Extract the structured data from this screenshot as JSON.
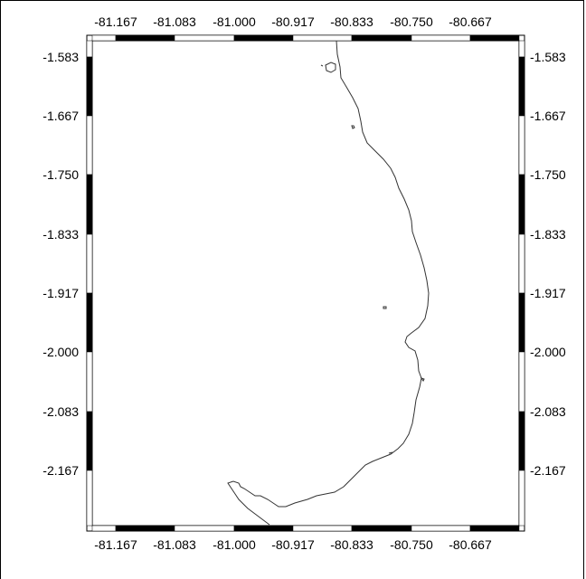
{
  "map": {
    "top_lon_labels": [
      "-81.167",
      "-81.083",
      "-81.000",
      "-80.917",
      "-80.833",
      "-80.750",
      "-80.667"
    ],
    "bottom_lon_labels": [
      "-81.167",
      "-81.083",
      "-81.000",
      "-80.917",
      "-80.833",
      "-80.750",
      "-80.667"
    ],
    "left_lat_labels": [
      "-1.583",
      "-1.667",
      "-1.750",
      "-1.833",
      "-1.917",
      "-2.000",
      "-2.083",
      "-2.167"
    ],
    "right_lat_labels": [
      "-1.583",
      "-1.667",
      "-1.750",
      "-1.833",
      "-1.917",
      "-2.000",
      "-2.083",
      "-2.167"
    ],
    "colors": {
      "frame": "#000000",
      "coastline": "#333333",
      "background": "#ffffff"
    }
  }
}
